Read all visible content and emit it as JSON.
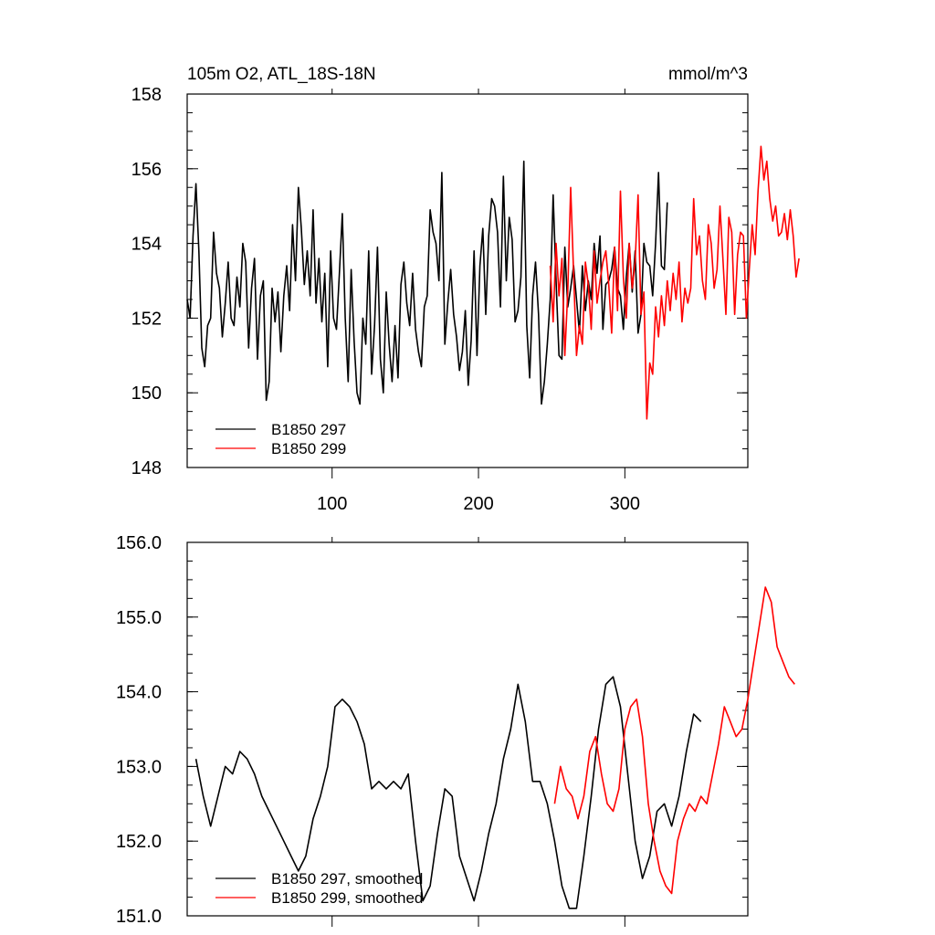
{
  "chart_data": [
    {
      "type": "line",
      "title": "105m O2, ATL_18S-18N",
      "units": "mmol/m^3",
      "xlim": [
        1,
        384
      ],
      "ylim": [
        148,
        158
      ],
      "x_ticks": [
        100,
        200,
        300
      ],
      "y_ticks": [
        148,
        150,
        152,
        154,
        156,
        158
      ],
      "y_tick_labels": [
        "148",
        "150",
        "152",
        "154",
        "156",
        "158"
      ],
      "legend_position": "bottom-left",
      "series": [
        {
          "name": "B1850 297",
          "color": "#000000",
          "x_start": 1,
          "x_step": 2,
          "values": [
            152.5,
            152.0,
            154.2,
            155.6,
            153.8,
            151.2,
            150.7,
            151.8,
            152.0,
            154.3,
            153.2,
            152.8,
            151.5,
            152.4,
            153.5,
            152.0,
            151.8,
            153.1,
            152.3,
            154.0,
            153.5,
            151.2,
            152.8,
            153.6,
            150.9,
            152.6,
            153.0,
            149.8,
            150.3,
            152.8,
            151.9,
            152.7,
            151.1,
            152.6,
            153.4,
            152.2,
            154.5,
            153.0,
            155.5,
            154.4,
            152.9,
            153.8,
            152.6,
            154.9,
            152.4,
            153.6,
            151.9,
            153.2,
            150.7,
            153.8,
            152.0,
            151.7,
            153.2,
            154.8,
            152.0,
            150.3,
            153.3,
            151.4,
            150.0,
            149.7,
            152.0,
            151.3,
            153.8,
            150.5,
            151.8,
            153.9,
            150.9,
            150.0,
            152.7,
            151.3,
            150.3,
            151.8,
            150.4,
            152.9,
            153.5,
            152.4,
            151.8,
            153.2,
            151.7,
            151.1,
            150.7,
            152.3,
            152.6,
            154.9,
            154.3,
            154.0,
            153.0,
            155.9,
            151.3,
            152.4,
            153.3,
            152.1,
            151.5,
            150.6,
            151.1,
            152.2,
            150.2,
            151.4,
            153.8,
            151.0,
            153.4,
            154.4,
            152.1,
            154.2,
            155.2,
            155.0,
            154.3,
            152.3,
            155.8,
            153.0,
            154.7,
            154.1,
            151.9,
            152.2,
            153.1,
            156.2,
            151.8,
            150.4,
            152.6,
            153.5,
            152.1,
            149.7,
            150.3,
            151.3,
            152.5,
            155.3,
            153.0,
            151.0,
            150.9,
            153.9,
            152.3,
            152.8,
            153.4,
            152.5,
            151.6,
            153.4,
            152.2,
            153.0,
            152.5,
            154.0,
            153.2,
            154.2,
            151.7,
            152.9,
            153.0,
            153.3,
            153.9,
            152.8,
            152.6,
            151.7,
            153.1,
            154.0,
            152.7,
            153.8,
            151.6,
            152.1,
            154.0,
            153.5,
            153.4,
            152.6,
            154.0,
            155.9,
            153.4,
            153.3,
            155.1
          ]
        },
        {
          "name": "B1850 299",
          "color": "#ff0000",
          "x_start": 249,
          "x_step": 2,
          "values": [
            153.4,
            151.9,
            154.0,
            152.6,
            153.6,
            151.0,
            152.7,
            155.5,
            153.2,
            151.0,
            151.8,
            151.3,
            153.5,
            152.9,
            151.7,
            153.8,
            152.4,
            153.0,
            153.5,
            153.8,
            152.9,
            151.6,
            153.9,
            152.2,
            155.4,
            153.1,
            152.0,
            154.0,
            152.8,
            153.5,
            155.3,
            152.1,
            152.7,
            149.3,
            150.8,
            150.5,
            152.3,
            151.5,
            152.6,
            151.8,
            153.0,
            152.2,
            153.2,
            152.5,
            153.5,
            151.9,
            152.8,
            152.4,
            152.8,
            155.2,
            153.7,
            154.2,
            153.0,
            152.5,
            154.5,
            154.0,
            152.8,
            153.3,
            155.0,
            153.6,
            152.1,
            154.7,
            154.3,
            152.1,
            153.7,
            154.3,
            154.2,
            152.0,
            153.3,
            154.5,
            153.7,
            155.4,
            156.6,
            155.7,
            156.2,
            155.2,
            154.6,
            155.0,
            154.2,
            154.3,
            154.8,
            154.1,
            154.9,
            154.2,
            153.1,
            153.6
          ]
        }
      ]
    },
    {
      "type": "line",
      "title": "",
      "xlim": [
        1,
        384
      ],
      "ylim": [
        151.0,
        156.0
      ],
      "x_ticks": [
        100,
        200,
        300
      ],
      "y_ticks": [
        151.0,
        152.0,
        153.0,
        154.0,
        155.0,
        156.0
      ],
      "y_tick_labels": [
        "151.0",
        "152.0",
        "153.0",
        "154.0",
        "155.0",
        "156.0"
      ],
      "legend_position": "bottom-left",
      "series": [
        {
          "name": "B1850 297, smoothed",
          "color": "#000000",
          "x_start": 7,
          "x_step": 5,
          "values": [
            153.1,
            152.6,
            152.2,
            152.6,
            153.0,
            152.9,
            153.2,
            153.1,
            152.9,
            152.6,
            152.4,
            152.2,
            152.0,
            151.8,
            151.6,
            151.8,
            152.3,
            152.6,
            153.0,
            153.8,
            153.9,
            153.8,
            153.6,
            153.3,
            152.7,
            152.8,
            152.7,
            152.8,
            152.7,
            152.9,
            152.0,
            151.2,
            151.4,
            152.1,
            152.7,
            152.6,
            151.8,
            151.5,
            151.2,
            151.6,
            152.1,
            152.5,
            153.1,
            153.5,
            154.1,
            153.6,
            152.8,
            152.8,
            152.5,
            152.0,
            151.4,
            151.1,
            151.1,
            151.8,
            152.6,
            153.5,
            154.1,
            154.2,
            153.8,
            152.9,
            152.0,
            151.5,
            151.8,
            152.4,
            152.5,
            152.2,
            152.6,
            153.2,
            153.7,
            153.6
          ]
        },
        {
          "name": "B1850 299, smoothed",
          "color": "#ff0000",
          "x_start": 252,
          "x_step": 4,
          "values": [
            152.5,
            153.0,
            152.7,
            152.6,
            152.3,
            152.6,
            153.2,
            153.4,
            152.9,
            152.5,
            152.4,
            152.7,
            153.5,
            153.8,
            153.9,
            153.4,
            152.5,
            152.0,
            151.6,
            151.4,
            151.3,
            152.0,
            152.3,
            152.5,
            152.4,
            152.6,
            152.5,
            152.9,
            153.3,
            153.8,
            153.6,
            153.4,
            153.5,
            153.9,
            154.4,
            154.9,
            155.4,
            155.2,
            154.6,
            154.4,
            154.2,
            154.1
          ]
        }
      ]
    }
  ]
}
